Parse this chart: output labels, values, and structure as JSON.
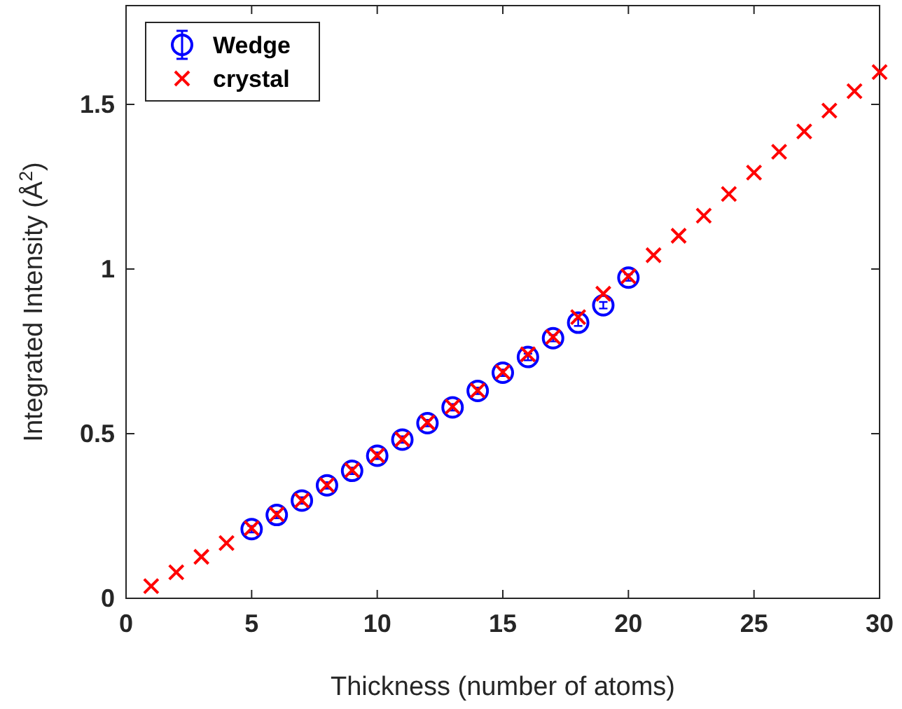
{
  "chart_data": {
    "type": "scatter",
    "xlabel": "Thickness (number of atoms)",
    "ylabel": "Integrated Intensity (Å$^{2}$)",
    "xlim": [
      0,
      30
    ],
    "xticks": [
      0,
      5,
      10,
      15,
      20,
      25,
      30
    ],
    "ylim": [
      0,
      1.8
    ],
    "yticks": [
      0,
      {
        "value": 0.5,
        "label": "0.5"
      },
      1,
      {
        "value": 1.5,
        "label": "1.5"
      }
    ],
    "legend": "top left",
    "grid": false,
    "series": [
      {
        "name": "Wedge",
        "color": "#0000ff",
        "marker": "circle",
        "x": [
          5,
          6,
          7,
          8,
          9,
          10,
          11,
          12,
          13,
          14,
          15,
          16,
          17,
          18,
          19,
          20
        ],
        "values": [
          0.21,
          0.253,
          0.297,
          0.343,
          0.387,
          0.433,
          0.482,
          0.532,
          0.58,
          0.63,
          0.685,
          0.733,
          0.79,
          0.837,
          0.89,
          0.974
        ],
        "errors": [
          0.01,
          0.01,
          0.01,
          0.01,
          0.01,
          0.01,
          0.01,
          0.01,
          0.01,
          0.01,
          0.01,
          0.01,
          0.01,
          0.01,
          0.01,
          0.01
        ]
      },
      {
        "name": "crystal",
        "color": "#ff0000",
        "marker": "cross",
        "x": [
          1,
          2,
          3,
          4,
          5,
          6,
          7,
          8,
          9,
          10,
          11,
          12,
          13,
          14,
          15,
          16,
          17,
          18,
          19,
          20,
          21,
          22,
          23,
          24,
          25,
          26,
          27,
          28,
          29,
          30
        ],
        "values": [
          0.037,
          0.079,
          0.126,
          0.168,
          0.213,
          0.255,
          0.297,
          0.344,
          0.389,
          0.434,
          0.483,
          0.534,
          0.582,
          0.631,
          0.687,
          0.741,
          0.794,
          0.854,
          0.925,
          0.978,
          1.042,
          1.101,
          1.162,
          1.228,
          1.293,
          1.356,
          1.418,
          1.481,
          1.54,
          1.598
        ]
      }
    ]
  }
}
